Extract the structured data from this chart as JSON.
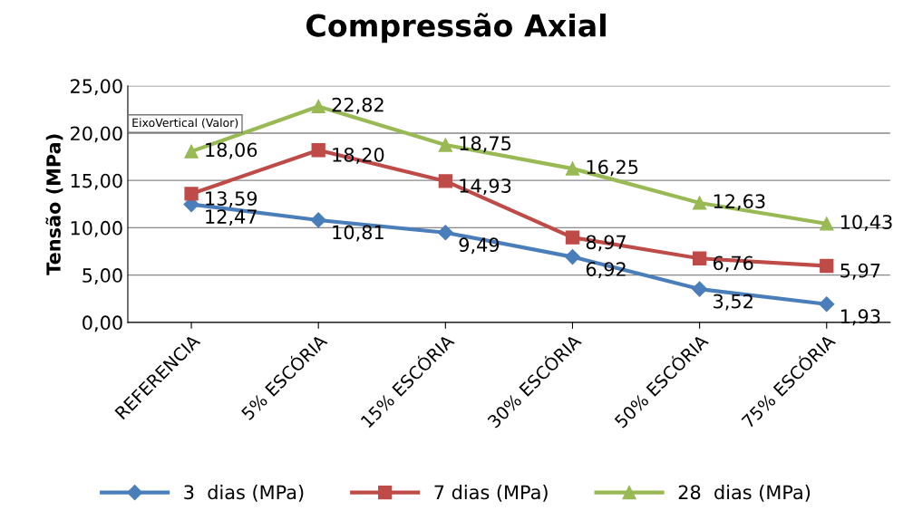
{
  "chart_data": {
    "type": "line",
    "title": "Compressão Axial",
    "ylabel": "Tensão (MPa)",
    "categories": [
      "REFERENCIA",
      "5% ESCÓRIA",
      "15% ESCÓRIA",
      "30% ESCÓRIA",
      "50% ESCÓRIA",
      "75% ESCÓRIA"
    ],
    "series": [
      {
        "name": "3  dias (MPa)",
        "color": "#4a7ebb",
        "marker": "diamond",
        "values": [
          12.47,
          10.81,
          9.49,
          6.92,
          3.52,
          1.93
        ],
        "value_labels": [
          "12,47",
          "10,81",
          "9,49",
          "6,92",
          "3,52",
          "1,93"
        ]
      },
      {
        "name": "7 dias (MPa)",
        "color": "#be4b48",
        "marker": "square",
        "values": [
          13.59,
          18.2,
          14.93,
          8.97,
          6.76,
          5.97
        ],
        "value_labels": [
          "13,59",
          "18,20",
          "14,93",
          "8,97",
          "6,76",
          "5,97"
        ]
      },
      {
        "name": "28  dias (MPa)",
        "color": "#98b954",
        "marker": "triangle",
        "values": [
          18.06,
          22.82,
          18.75,
          16.25,
          12.63,
          10.43
        ],
        "value_labels": [
          "18,06",
          "22,82",
          "18,75",
          "16,25",
          "12,63",
          "10,43"
        ]
      }
    ],
    "ylim": [
      0,
      25
    ],
    "yticks": [
      {
        "value": 0,
        "label": "0,00"
      },
      {
        "value": 5,
        "label": "5,00"
      },
      {
        "value": 10,
        "label": "10,00"
      },
      {
        "value": 15,
        "label": "15,00"
      },
      {
        "value": 20,
        "label": "20,00"
      },
      {
        "value": 25,
        "label": "25,00"
      }
    ],
    "grid": "y",
    "legend": "bottom",
    "line_style": "solid",
    "annotations": [
      "EixoVertical (Valor)"
    ]
  }
}
